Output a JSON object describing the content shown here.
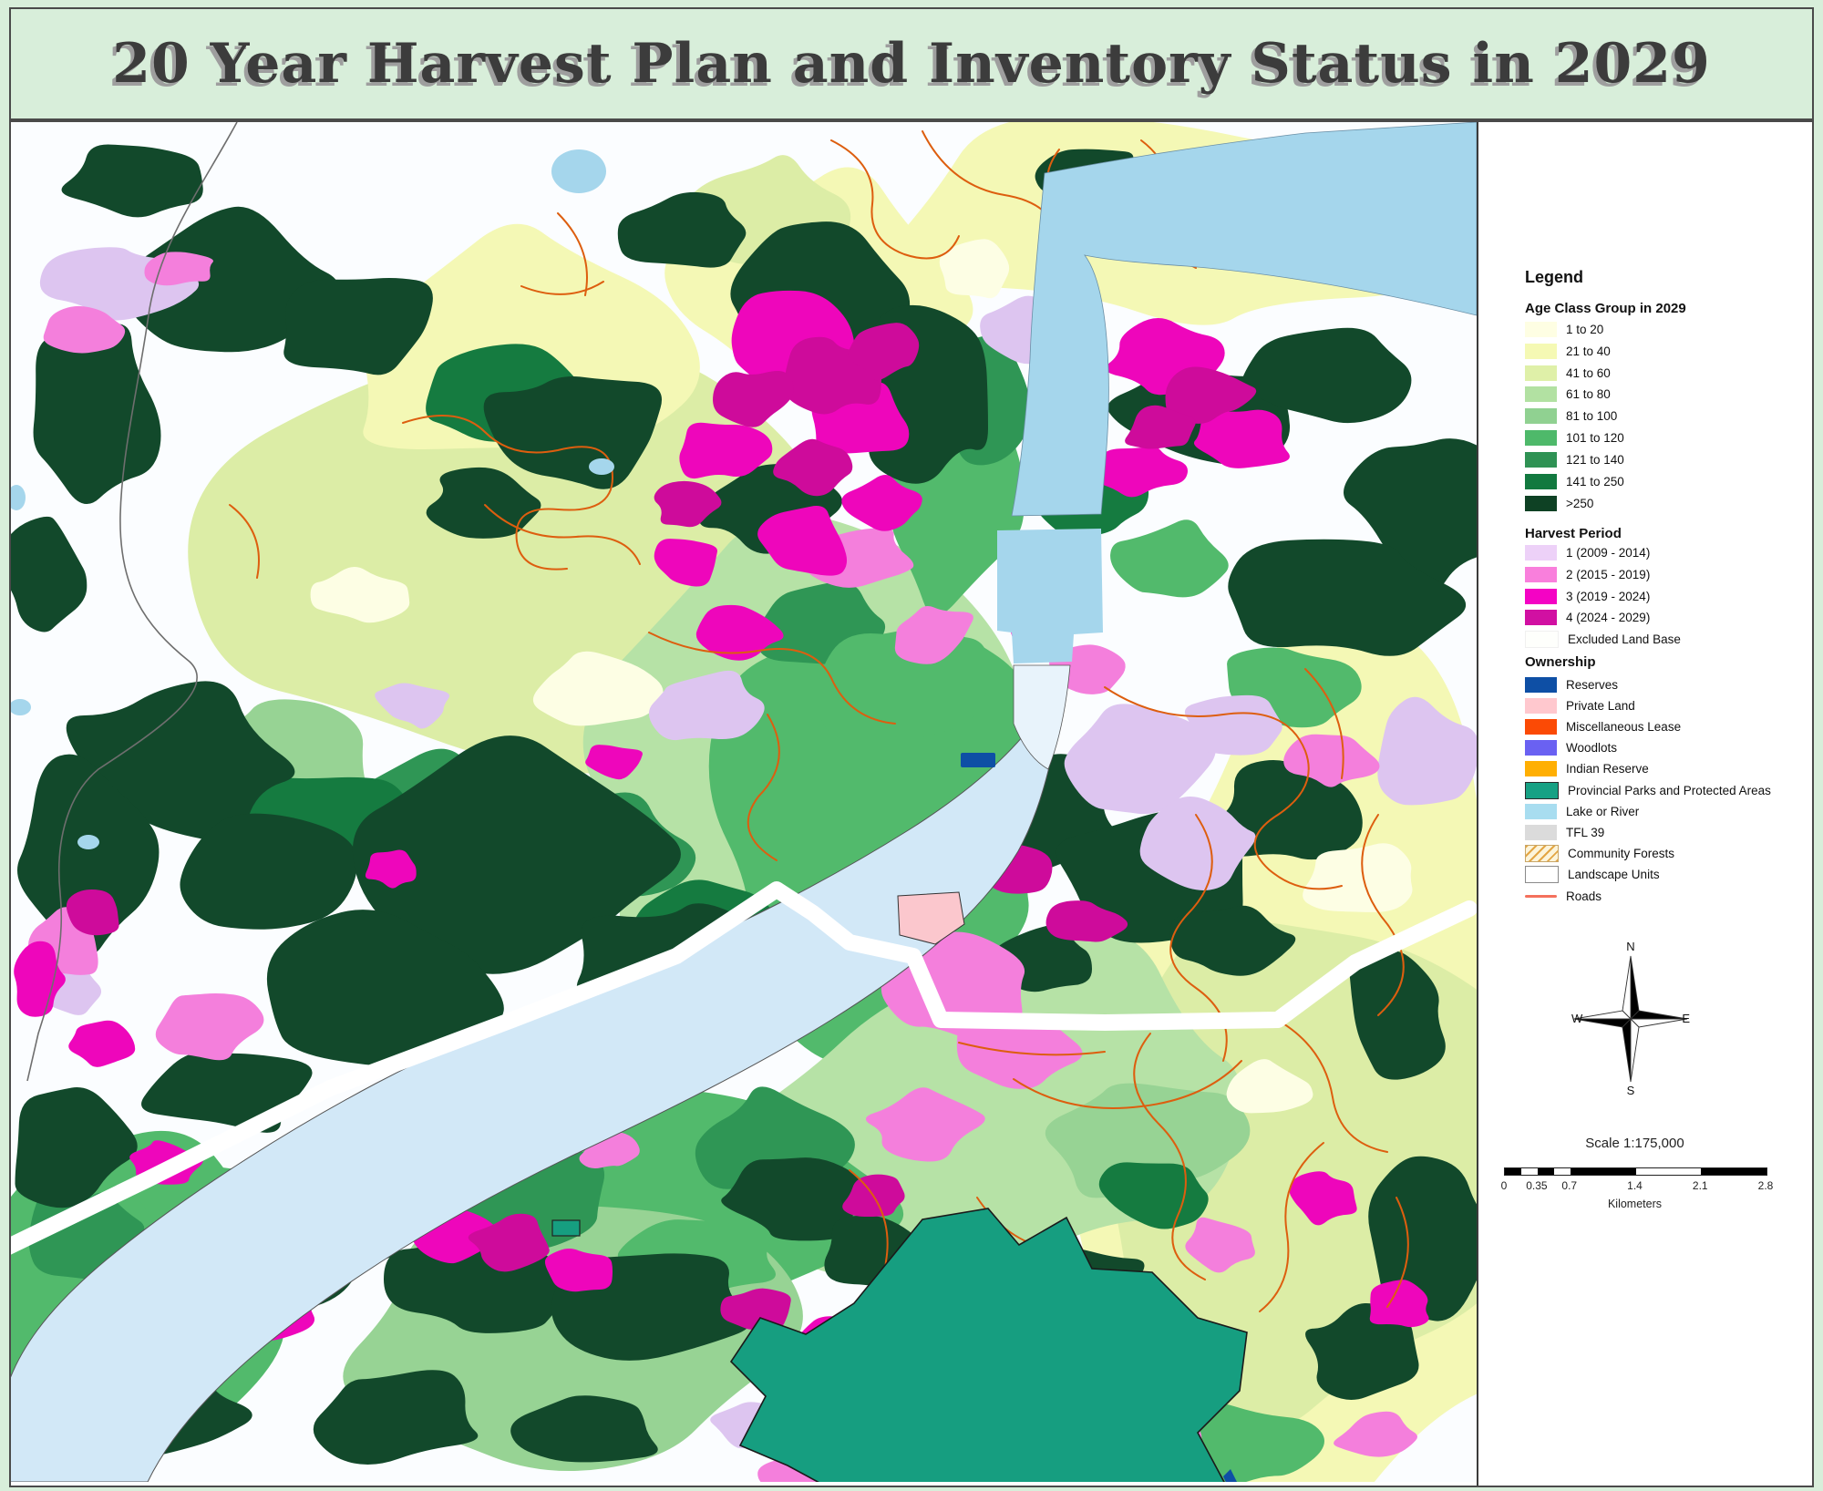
{
  "title": "20 Year Harvest Plan and Inventory Status in 2029",
  "legend": {
    "heading": "Legend",
    "sections": {
      "age_class": {
        "heading": "Age Class Group in 2029",
        "items": [
          {
            "label": "1 to 20",
            "color": "#FEFEE3"
          },
          {
            "label": "21 to 40",
            "color": "#F5F9B4"
          },
          {
            "label": "41 to 60",
            "color": "#DFF0A8"
          },
          {
            "label": "61 to 80",
            "color": "#B2E1A2"
          },
          {
            "label": "81 to 100",
            "color": "#90D191"
          },
          {
            "label": "101 to 120",
            "color": "#4EB96A"
          },
          {
            "label": "121 to 140",
            "color": "#2F9254"
          },
          {
            "label": "141 to 250",
            "color": "#12793F"
          },
          {
            "label": ">250",
            "color": "#0E4124"
          }
        ]
      },
      "harvest": {
        "heading": "Harvest Period",
        "items": [
          {
            "label": "1 (2009 - 2014)",
            "color": "#EDD1F8"
          },
          {
            "label": "2 (2015 - 2019)",
            "color": "#F97FDC"
          },
          {
            "label": "3 (2019 - 2024)",
            "color": "#F403C4"
          },
          {
            "label": "4 (2024 - 2029)",
            "color": "#D110A2"
          },
          {
            "label": "Excluded Land Base",
            "color": "#FEFFFC"
          }
        ]
      },
      "ownership": {
        "heading": "Ownership",
        "items": [
          {
            "label": "Reserves",
            "color": "#0E4FA5"
          },
          {
            "label": "Private Land",
            "color": "#FFC8CE"
          },
          {
            "label": "Miscellaneous Lease",
            "color": "#FB4A05"
          },
          {
            "label": "Woodlots",
            "color": "#6A61F2"
          },
          {
            "label": "Indian Reserve",
            "color": "#FFAF03"
          },
          {
            "label": "Provincial Parks and Protected Areas",
            "color": "#17A184"
          },
          {
            "label": "Lake or River",
            "color": "#A8DDF0"
          },
          {
            "label": "TFL 39",
            "color": "#DBDBDB"
          },
          {
            "label": "Community Forests",
            "color": "#FCF4DA"
          },
          {
            "label": "Landscape Units",
            "color": "#FFFFFF"
          },
          {
            "label": "Roads",
            "color": "#F4705C"
          }
        ]
      }
    }
  },
  "compass": {
    "north": "N",
    "south": "S",
    "east": "E",
    "west": "W"
  },
  "scale_bar": {
    "title": "Scale 1:175,000",
    "ticks": [
      "0",
      "0.35",
      "0.7",
      "1.4",
      "2.1",
      "2.8"
    ],
    "units": "Kilometers"
  },
  "map": {
    "palette": {
      "bg": "#FBFDFF",
      "c1": "#FDFEE4",
      "c2": "#F4F8B5",
      "c3": "#DCEDA6",
      "c4": "#B6E2A6",
      "c5": "#97D394",
      "c6": "#52BA6C",
      "c7": "#2F9655",
      "c8": "#157B40",
      "c9": "#12492B",
      "h1": "#DDC5F0",
      "h2": "#F47FDC",
      "h3": "#EE06BB",
      "h4": "#CE0B9B",
      "water": "#A5D6EC",
      "water_pale": "#D2E8F7",
      "estuary": "#E8F3FB",
      "road": "#DD5E0F",
      "boundary": "#6E6E6E",
      "corridor": "#FFFFFF",
      "park": "#169E80",
      "private": "#FBC7CD",
      "reserve": "#0E4FA5"
    }
  }
}
